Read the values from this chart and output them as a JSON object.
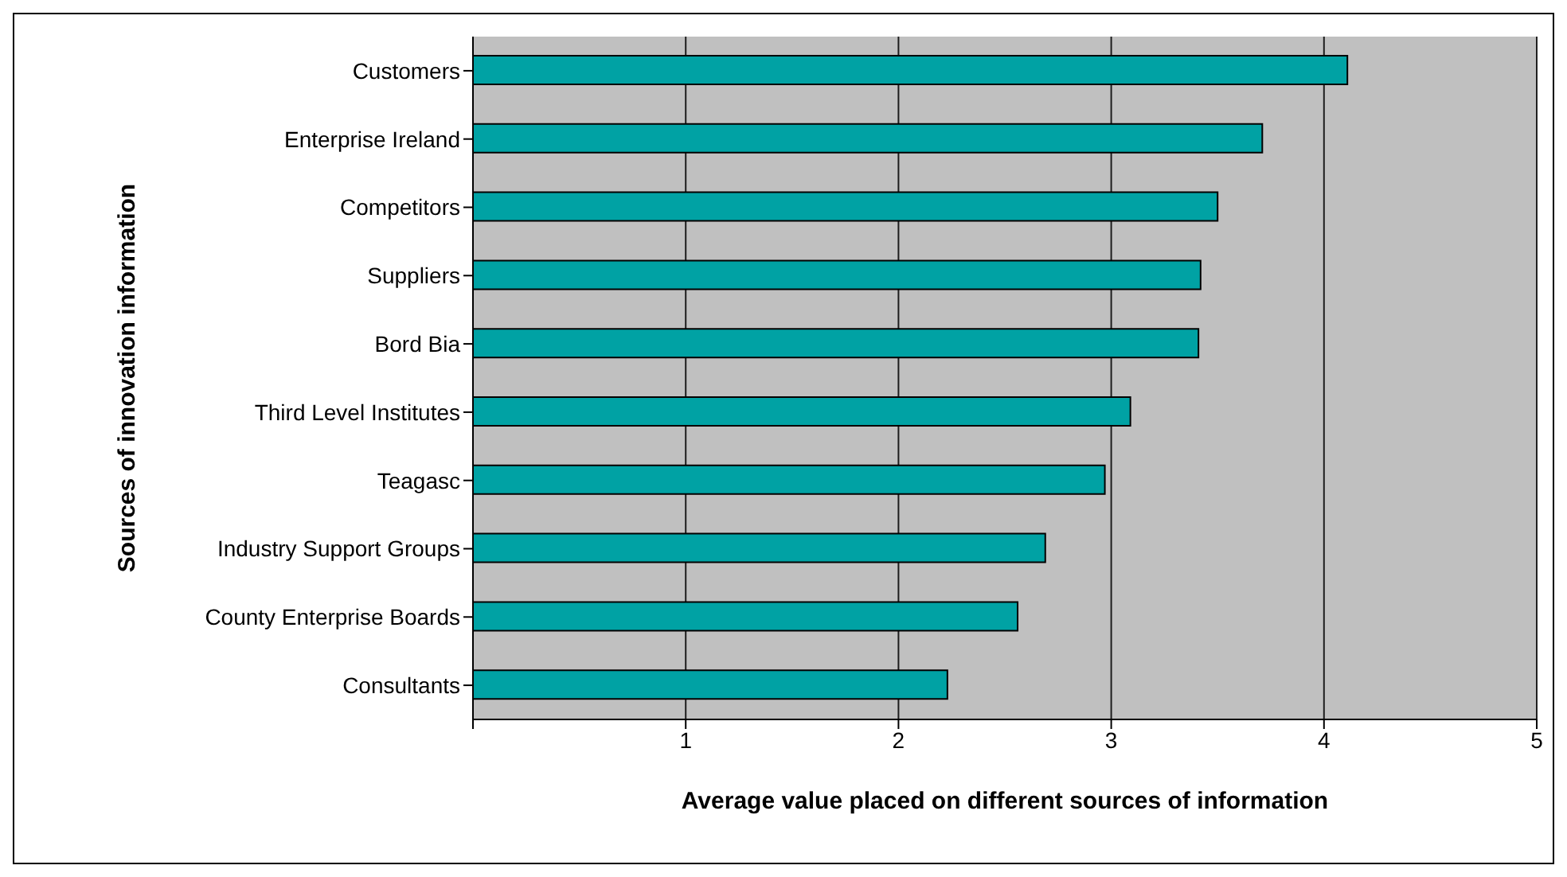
{
  "chart_data": {
    "type": "bar",
    "orientation": "horizontal",
    "xlabel": "Average value placed on different sources of information",
    "ylabel": "Sources of innovation information",
    "categories": [
      "Customers",
      "Enterprise Ireland",
      "Competitors",
      "Suppliers",
      "Bord Bia",
      "Third Level Institutes",
      "Teagasc",
      "Industry Support Groups",
      "County Enterprise Boards",
      "Consultants"
    ],
    "values": [
      4.11,
      3.71,
      3.5,
      3.42,
      3.41,
      3.09,
      2.97,
      2.69,
      2.56,
      2.23
    ],
    "color": "#00a2a4",
    "xlim": [
      0,
      5
    ],
    "xticks": [
      {
        "value": 0,
        "label": null
      },
      1,
      2,
      3,
      4,
      5
    ],
    "grid": "x",
    "legend": false
  }
}
